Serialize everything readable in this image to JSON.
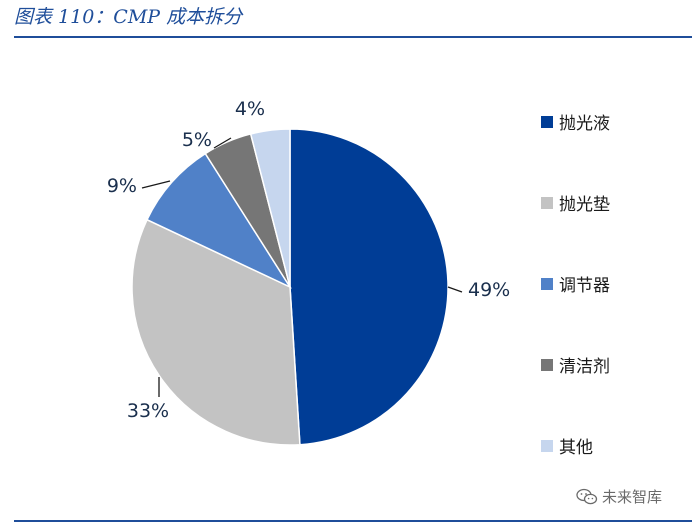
{
  "header": {
    "title": "图表 110：CMP 成本拆分"
  },
  "watermark": {
    "text": "未来智库"
  },
  "chart_data": {
    "type": "pie",
    "unit": "%",
    "slices": [
      {
        "name": "抛光液",
        "value": 49,
        "label": "49%",
        "color": "#003d96"
      },
      {
        "name": "抛光垫",
        "value": 33,
        "label": "33%",
        "color": "#c3c3c3"
      },
      {
        "name": "调节器",
        "value": 9,
        "label": "9%",
        "color": "#5081c8"
      },
      {
        "name": "清洁剂",
        "value": 5,
        "label": "5%",
        "color": "#767676"
      },
      {
        "name": "其他",
        "value": 4,
        "label": "4%",
        "color": "#c6d6ee"
      }
    ],
    "legend_position": "right"
  }
}
